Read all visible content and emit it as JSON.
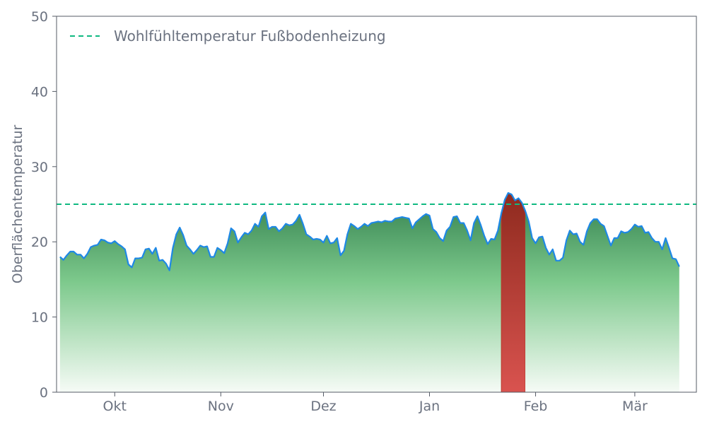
{
  "chart_data": {
    "type": "area",
    "title": "",
    "xlabel": "",
    "ylabel": "Oberflächentemperatur",
    "ylim": [
      0,
      50
    ],
    "yticks": [
      0,
      10,
      20,
      30,
      40,
      50
    ],
    "xlim": [
      "2023-09-14",
      "2024-03-19"
    ],
    "xticks": [
      {
        "label": "Okt",
        "date": "2023-10-01"
      },
      {
        "label": "Nov",
        "date": "2023-11-01"
      },
      {
        "label": "Dez",
        "date": "2023-12-01"
      },
      {
        "label": "Jan",
        "date": "2024-01-01"
      },
      {
        "label": "Feb",
        "date": "2024-02-01"
      },
      {
        "label": "Mär",
        "date": "2024-03-01"
      }
    ],
    "grid": false,
    "legend": {
      "position": "top-left",
      "entries": [
        "Wohlfühltemperatur Fußbodenheizung"
      ]
    },
    "threshold": {
      "name": "Wohlfühltemperatur Fußbodenheizung",
      "value": 25,
      "color": "#10b981",
      "style": "dashed"
    },
    "series": [
      {
        "line_color": "#1e88e5",
        "fill_color_below": "#3a8c55",
        "fill_color_above": "#922b21",
        "x_start": "2023-09-15",
        "x_step_days": 1,
        "values": [
          18.0,
          17.6,
          18.2,
          18.7,
          18.7,
          18.3,
          18.3,
          17.8,
          18.4,
          19.3,
          19.5,
          19.6,
          20.3,
          20.2,
          19.9,
          19.8,
          20.1,
          19.7,
          19.4,
          19.0,
          17.0,
          16.6,
          17.8,
          17.8,
          17.9,
          19.0,
          19.1,
          18.4,
          19.2,
          17.5,
          17.6,
          17.1,
          16.2,
          19.2,
          21.0,
          21.9,
          20.9,
          19.5,
          19.0,
          18.4,
          18.9,
          19.5,
          19.3,
          19.4,
          18.0,
          18.0,
          19.2,
          18.9,
          18.5,
          19.8,
          21.8,
          21.4,
          19.9,
          20.6,
          21.2,
          21.0,
          21.5,
          22.4,
          22.0,
          23.4,
          23.9,
          21.7,
          22.0,
          22.0,
          21.4,
          21.8,
          22.4,
          22.2,
          22.3,
          22.8,
          23.6,
          22.4,
          21.0,
          20.7,
          20.3,
          20.4,
          20.3,
          19.9,
          20.8,
          19.8,
          19.9,
          20.5,
          18.2,
          18.8,
          21.0,
          22.4,
          22.1,
          21.7,
          22.0,
          22.4,
          22.1,
          22.5,
          22.6,
          22.7,
          22.6,
          22.8,
          22.7,
          22.7,
          23.1,
          23.2,
          23.3,
          23.2,
          23.1,
          21.8,
          22.6,
          23.0,
          23.4,
          23.7,
          23.5,
          21.7,
          21.3,
          20.5,
          20.1,
          21.5,
          22.0,
          23.3,
          23.4,
          22.5,
          22.5,
          21.5,
          20.2,
          22.5,
          23.4,
          22.2,
          20.8,
          19.7,
          20.4,
          20.3,
          21.5,
          23.8,
          25.6,
          26.5,
          26.3,
          25.5,
          25.8,
          25.2,
          24.1,
          22.7,
          20.5,
          19.8,
          20.6,
          20.7,
          19.2,
          18.3,
          19.0,
          17.5,
          17.5,
          17.9,
          20.2,
          21.5,
          21.0,
          21.1,
          20.0,
          19.6,
          21.4,
          22.5,
          23.0,
          23.0,
          22.4,
          22.1,
          20.8,
          19.5,
          20.5,
          20.5,
          21.4,
          21.2,
          21.3,
          21.7,
          22.3,
          22.0,
          22.1,
          21.2,
          21.3,
          20.5,
          20.0,
          20.0,
          19.0,
          20.5,
          19.2,
          17.8,
          17.7,
          16.7
        ]
      }
    ]
  }
}
